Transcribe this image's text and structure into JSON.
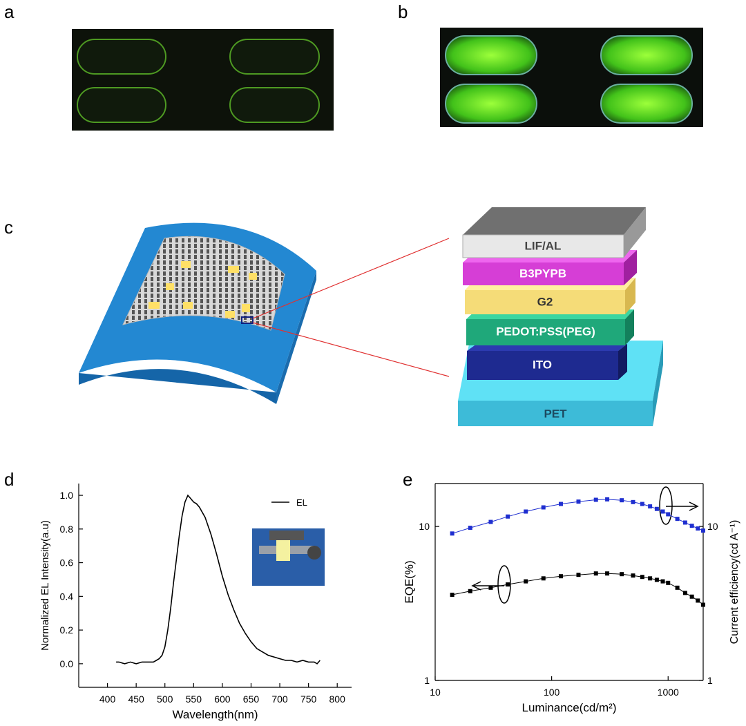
{
  "panel_labels": [
    "a",
    "b",
    "c",
    "d",
    "e"
  ],
  "layers": [
    "LIF/AL",
    "B3PYPB",
    "G2",
    "PEDOT:PSS(PEG)",
    "ITO",
    "PET"
  ],
  "chart_data": [
    {
      "type": "line",
      "xlabel": "Wavelength(nm)",
      "ylabel": "Normalized EL Intensity(a.u)",
      "x": [
        415,
        420,
        430,
        440,
        450,
        460,
        470,
        480,
        485,
        490,
        495,
        500,
        505,
        510,
        515,
        520,
        525,
        530,
        535,
        540,
        545,
        550,
        555,
        560,
        570,
        580,
        590,
        600,
        610,
        620,
        630,
        640,
        650,
        660,
        670,
        680,
        690,
        700,
        710,
        720,
        730,
        740,
        750,
        760,
        765,
        770
      ],
      "series": [
        {
          "name": "EL",
          "color": "#000000",
          "values": [
            0.01,
            0.01,
            0.0,
            0.01,
            0.0,
            0.01,
            0.01,
            0.01,
            0.02,
            0.03,
            0.05,
            0.1,
            0.2,
            0.33,
            0.48,
            0.62,
            0.76,
            0.88,
            0.96,
            1.0,
            0.98,
            0.96,
            0.95,
            0.93,
            0.87,
            0.77,
            0.65,
            0.52,
            0.41,
            0.32,
            0.24,
            0.18,
            0.13,
            0.09,
            0.07,
            0.05,
            0.04,
            0.03,
            0.02,
            0.02,
            0.01,
            0.02,
            0.01,
            0.01,
            0.0,
            0.02
          ]
        }
      ],
      "xlim": [
        350,
        825
      ],
      "ylim": [
        -0.14,
        1.07
      ],
      "xticks": [
        400,
        450,
        500,
        550,
        600,
        650,
        700,
        750,
        800
      ],
      "yticks": [
        {
          "value": 0,
          "label": "0.0"
        },
        {
          "value": 0.2,
          "label": "0.2"
        },
        {
          "value": 0.4,
          "label": "0.4"
        },
        {
          "value": 0.6,
          "label": "0.6"
        },
        {
          "value": 0.8,
          "label": "0.8"
        },
        {
          "value": 1,
          "label": "1.0"
        }
      ]
    },
    {
      "type": "line",
      "marker": "square",
      "xlabel": "Luminance(cd/m²)",
      "ylabel": "EQE(%)",
      "y2label": "Current efficiency(cd A⁻¹)",
      "xscale": "log",
      "yscale": "log",
      "x": [
        14,
        20,
        30,
        42,
        60,
        85,
        120,
        170,
        240,
        300,
        400,
        500,
        600,
        700,
        800,
        900,
        1000,
        1200,
        1400,
        1600,
        1800,
        2000
      ],
      "series": [
        {
          "color": "#000000",
          "values": [
            3.6,
            3.8,
            4.0,
            4.2,
            4.4,
            4.6,
            4.75,
            4.85,
            4.95,
            4.95,
            4.9,
            4.8,
            4.7,
            4.6,
            4.5,
            4.4,
            4.3,
            4.0,
            3.7,
            3.5,
            3.3,
            3.1
          ]
        },
        {
          "color": "#1f2fd0",
          "axis": "y2",
          "values": [
            9.0,
            9.8,
            10.7,
            11.6,
            12.5,
            13.3,
            14.0,
            14.5,
            14.9,
            15.0,
            14.8,
            14.4,
            14.0,
            13.5,
            13.0,
            12.5,
            12.0,
            11.2,
            10.6,
            10.1,
            9.7,
            9.4
          ]
        }
      ],
      "xlim": [
        10,
        2000
      ],
      "ylim": [
        1,
        19
      ],
      "y2lim": [
        1,
        19
      ],
      "xticks": [
        10,
        100,
        1000
      ],
      "yticks": [
        1,
        10
      ],
      "y2ticks": [
        1,
        10
      ]
    }
  ]
}
